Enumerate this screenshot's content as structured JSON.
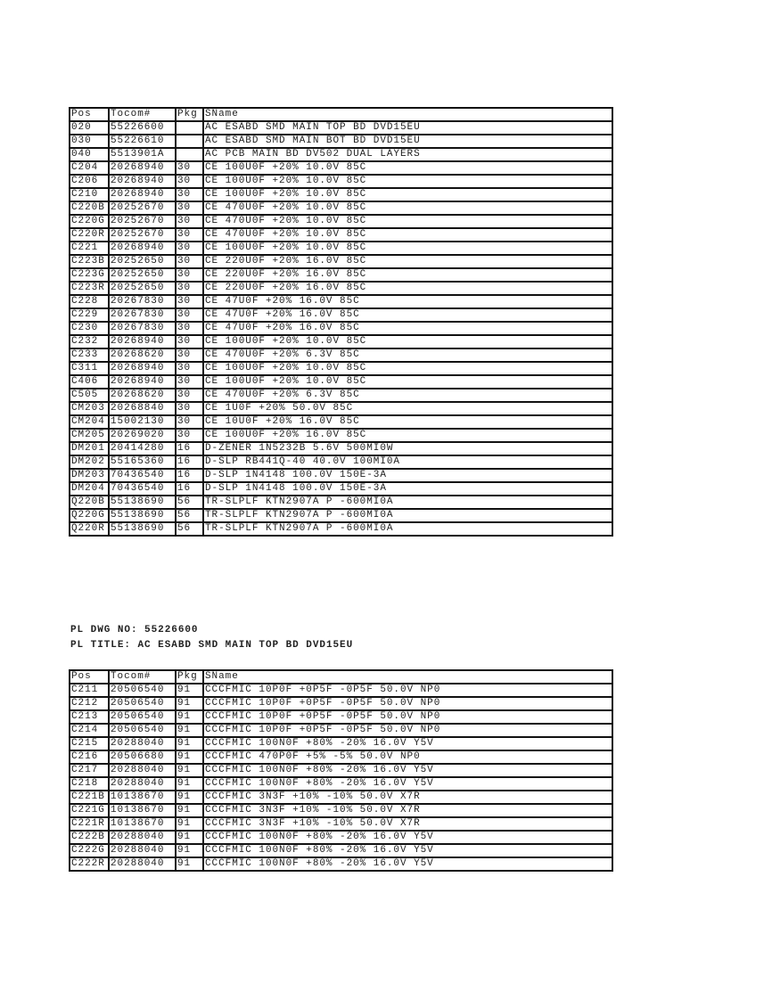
{
  "columns": [
    "Pos",
    "Tocom#",
    "Pkg",
    "SName"
  ],
  "table1": [
    [
      "020",
      "55226600",
      "",
      "AC ESABD SMD MAIN TOP BD DVD15EU"
    ],
    [
      "030",
      "55226610",
      "",
      "AC ESABD SMD MAIN BOT BD DVD15EU"
    ],
    [
      "040",
      "5513901A",
      "",
      "AC PCB MAIN BD DV502 DUAL LAYERS"
    ],
    [
      "C204",
      "20268940",
      "30",
      "CE 100U0F +20% 10.0V 85C"
    ],
    [
      "C206",
      "20268940",
      "30",
      "CE 100U0F +20% 10.0V 85C"
    ],
    [
      "C210",
      "20268940",
      "30",
      "CE 100U0F +20% 10.0V 85C"
    ],
    [
      "C220B",
      "20252670",
      "30",
      "CE 470U0F +20% 10.0V 85C"
    ],
    [
      "C220G",
      "20252670",
      "30",
      "CE 470U0F +20% 10.0V 85C"
    ],
    [
      "C220R",
      "20252670",
      "30",
      "CE 470U0F +20% 10.0V 85C"
    ],
    [
      "C221",
      "20268940",
      "30",
      "CE 100U0F +20% 10.0V 85C"
    ],
    [
      "C223B",
      "20252650",
      "30",
      "CE 220U0F +20% 16.0V 85C"
    ],
    [
      "C223G",
      "20252650",
      "30",
      "CE 220U0F +20% 16.0V 85C"
    ],
    [
      "C223R",
      "20252650",
      "30",
      "CE 220U0F +20% 16.0V 85C"
    ],
    [
      "C228",
      "20267830",
      "30",
      "CE 47U0F +20% 16.0V 85C"
    ],
    [
      "C229",
      "20267830",
      "30",
      "CE 47U0F +20% 16.0V 85C"
    ],
    [
      "C230",
      "20267830",
      "30",
      "CE 47U0F +20% 16.0V 85C"
    ],
    [
      "C232",
      "20268940",
      "30",
      "CE 100U0F +20% 10.0V 85C"
    ],
    [
      "C233",
      "20268620",
      "30",
      "CE 470U0F +20% 6.3V 85C"
    ],
    [
      "C311",
      "20268940",
      "30",
      "CE 100U0F +20% 10.0V 85C"
    ],
    [
      "C406",
      "20268940",
      "30",
      "CE 100U0F +20% 10.0V 85C"
    ],
    [
      "C505",
      "20268620",
      "30",
      "CE 470U0F +20% 6.3V 85C"
    ],
    [
      "CM203",
      "20268840",
      "30",
      "CE 1U0F +20% 50.0V 85C"
    ],
    [
      "CM204",
      "15002130",
      "30",
      "CE 10U0F +20% 16.0V 85C"
    ],
    [
      "CM205",
      "20269020",
      "30",
      "CE 100U0F +20% 16.0V 85C"
    ],
    [
      "DM201",
      "20414280",
      "16",
      "D-ZENER 1N5232B 5.6V 500MI0W"
    ],
    [
      "DM202",
      "55165360",
      "16",
      "D-SLP RB441Q-40 40.0V 100MI0A"
    ],
    [
      "DM203",
      "70436540",
      "16",
      "D-SLP 1N4148 100.0V 150E-3A"
    ],
    [
      "DM204",
      "70436540",
      "16",
      "D-SLP 1N4148 100.0V 150E-3A"
    ],
    [
      "Q220B",
      "55138690",
      "56",
      "TR-SLPLF KTN2907A P -600MI0A"
    ],
    [
      "Q220G",
      "55138690",
      "56",
      "TR-SLPLF KTN2907A P -600MI0A"
    ],
    [
      "Q220R",
      "55138690",
      "56",
      "TR-SLPLF KTN2907A P -600MI0A"
    ]
  ],
  "pl_dwg_no": "PL DWG NO: 55226600",
  "pl_title": "PL TITLE: AC ESABD SMD MAIN TOP BD DVD15EU",
  "table2": [
    [
      "C211",
      "20506540",
      "91",
      "CCCFMIC 10P0F +0P5F -0P5F 50.0V NP0"
    ],
    [
      "C212",
      "20506540",
      "91",
      "CCCFMIC 10P0F +0P5F -0P5F 50.0V NP0"
    ],
    [
      "C213",
      "20506540",
      "91",
      "CCCFMIC 10P0F +0P5F -0P5F 50.0V NP0"
    ],
    [
      "C214",
      "20506540",
      "91",
      "CCCFMIC 10P0F +0P5F -0P5F 50.0V NP0"
    ],
    [
      "C215",
      "20288040",
      "91",
      "CCCFMIC 100N0F +80% -20% 16.0V Y5V"
    ],
    [
      "C216",
      "20506680",
      "91",
      "CCCFMIC 470P0F +5% -5% 50.0V NP0"
    ],
    [
      "C217",
      "20288040",
      "91",
      "CCCFMIC 100N0F +80% -20% 16.0V Y5V"
    ],
    [
      "C218",
      "20288040",
      "91",
      "CCCFMIC 100N0F +80% -20% 16.0V Y5V"
    ],
    [
      "C221B",
      "10138670",
      "91",
      "CCCFMIC 3N3F +10% -10% 50.0V X7R"
    ],
    [
      "C221G",
      "10138670",
      "91",
      "CCCFMIC 3N3F +10% -10% 50.0V X7R"
    ],
    [
      "C221R",
      "10138670",
      "91",
      "CCCFMIC 3N3F +10% -10% 50.0V X7R"
    ],
    [
      "C222B",
      "20288040",
      "91",
      "CCCFMIC 100N0F +80% -20% 16.0V Y5V"
    ],
    [
      "C222G",
      "20288040",
      "91",
      "CCCFMIC 100N0F +80% -20% 16.0V Y5V"
    ],
    [
      "C222R",
      "20288040",
      "91",
      "CCCFMIC 100N0F +80% -20% 16.0V Y5V"
    ]
  ]
}
